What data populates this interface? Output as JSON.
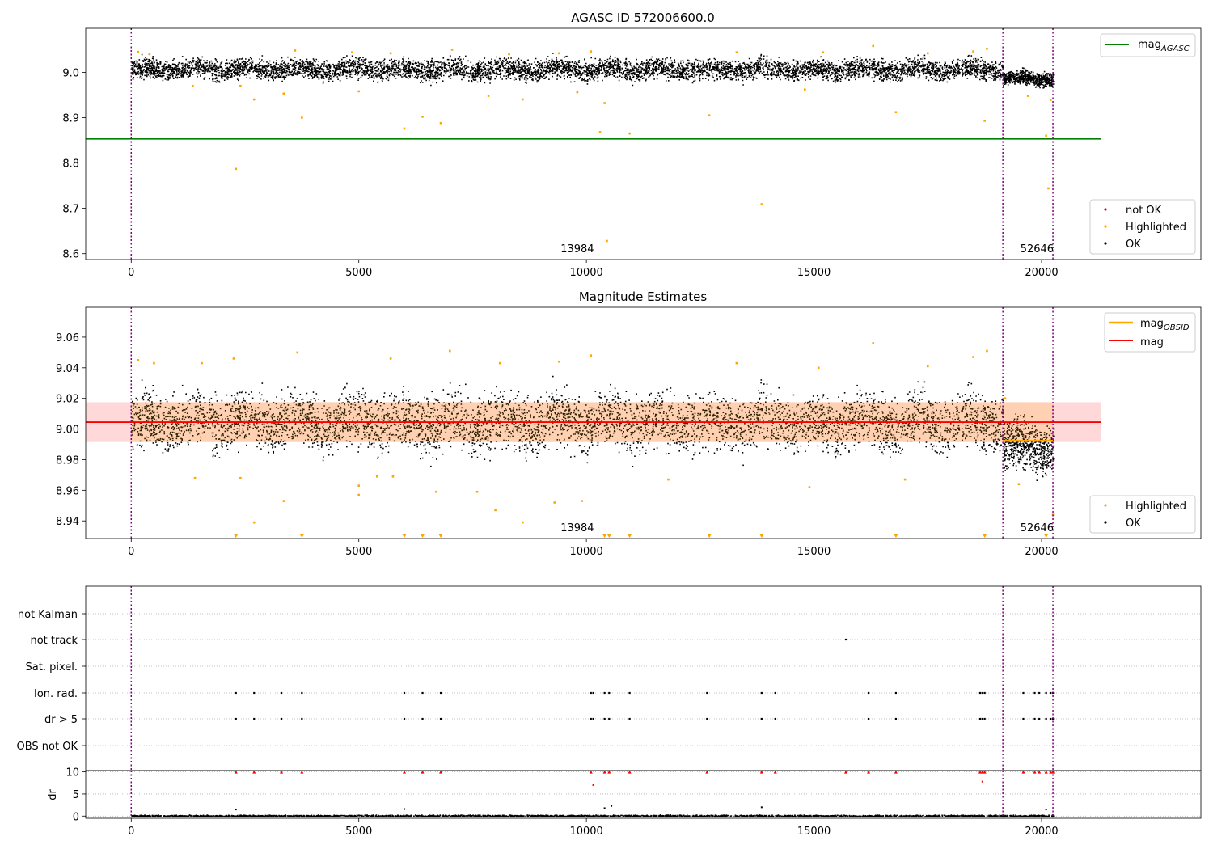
{
  "figure": {
    "x_ticks": [
      "0",
      "5000",
      "10000",
      "15000",
      "20000"
    ],
    "markers": {
      "obsid_lines_x": [
        0,
        19150,
        20250
      ],
      "obsid_labels": [
        {
          "text": "13984",
          "x": 9800
        },
        {
          "text": "52646",
          "x": 19900
        }
      ]
    },
    "colors": {
      "ok": "#000000",
      "highlighted": "#ffa500",
      "not_ok": "#ff0000",
      "mag_agasc": "#008000",
      "mag": "#ff0000",
      "mag_obsid": "#ffa500",
      "band": "#ffc0c0",
      "obsid_line": "#800080"
    }
  },
  "chart_data": [
    {
      "type": "scatter",
      "title": "AGASC ID 572006600.0",
      "xlim": [
        -1000,
        23500
      ],
      "ylim": [
        8.587,
        9.097
      ],
      "yticks": [
        "8.6",
        "8.7",
        "8.8",
        "8.9",
        "9.0"
      ],
      "ytick_values": [
        8.6,
        8.7,
        8.8,
        8.9,
        9.0
      ],
      "series": [
        {
          "name": "not OK",
          "color": "#ff0000",
          "points": []
        },
        {
          "name": "Highlighted",
          "color": "#ffa500",
          "points": [
            [
              150,
              9.045
            ],
            [
              400,
              9.04
            ],
            [
              1350,
              8.97
            ],
            [
              2300,
              8.787
            ],
            [
              2400,
              8.97
            ],
            [
              2700,
              8.94
            ],
            [
              3350,
              8.953
            ],
            [
              3600,
              9.048
            ],
            [
              3750,
              8.9
            ],
            [
              4850,
              9.044
            ],
            [
              5000,
              8.958
            ],
            [
              5700,
              9.042
            ],
            [
              6000,
              8.876
            ],
            [
              6400,
              8.902
            ],
            [
              6800,
              8.888
            ],
            [
              7050,
              9.05
            ],
            [
              7850,
              8.948
            ],
            [
              8300,
              9.04
            ],
            [
              8600,
              8.94
            ],
            [
              9400,
              9.042
            ],
            [
              9800,
              8.956
            ],
            [
              10100,
              9.046
            ],
            [
              10300,
              8.868
            ],
            [
              10400,
              8.932
            ],
            [
              10450,
              8.628
            ],
            [
              10950,
              8.865
            ],
            [
              12700,
              8.905
            ],
            [
              13300,
              9.044
            ],
            [
              13850,
              8.709
            ],
            [
              14800,
              8.962
            ],
            [
              15200,
              9.044
            ],
            [
              16300,
              9.058
            ],
            [
              16800,
              8.912
            ],
            [
              17500,
              9.042
            ],
            [
              18500,
              9.046
            ],
            [
              18750,
              8.893
            ],
            [
              18800,
              9.052
            ],
            [
              19700,
              8.948
            ],
            [
              20100,
              8.86
            ],
            [
              20150,
              8.744
            ],
            [
              20200,
              8.939
            ]
          ]
        },
        {
          "name": "OK",
          "color": "#000000",
          "bands": [
            {
              "x0": 0,
              "x1": 19150,
              "y0": 8.975,
              "y1": 9.04
            },
            {
              "x0": 19150,
              "x1": 20250,
              "y0": 8.965,
              "y1": 9.01
            }
          ]
        }
      ],
      "lines": [
        {
          "name": "mag$_{AGASC}$",
          "legend_text": "mag",
          "legend_sub": "AGASC",
          "y": 8.853,
          "x_range": [
            -1000,
            21300
          ],
          "color": "#008000"
        }
      ],
      "legends": [
        {
          "position": "upper-right",
          "entries": [
            "mag_AGASC"
          ]
        },
        {
          "position": "lower-right",
          "entries": [
            "not OK",
            "Highlighted",
            "OK"
          ]
        }
      ]
    },
    {
      "type": "scatter",
      "title": "Magnitude Estimates",
      "xlim": [
        -1000,
        23500
      ],
      "ylim": [
        8.9285,
        9.0795
      ],
      "yticks": [
        "8.94",
        "8.96",
        "8.98",
        "9.00",
        "9.02",
        "9.04",
        "9.06"
      ],
      "ytick_values": [
        8.94,
        8.96,
        8.98,
        9.0,
        9.02,
        9.04,
        9.06
      ],
      "series": [
        {
          "name": "Highlighted",
          "color": "#ffa500",
          "points": [
            [
              150,
              9.045
            ],
            [
              500,
              9.043
            ],
            [
              1400,
              8.968
            ],
            [
              1550,
              9.043
            ],
            [
              2250,
              9.046
            ],
            [
              2400,
              8.968
            ],
            [
              2700,
              8.939
            ],
            [
              3350,
              8.953
            ],
            [
              3650,
              9.05
            ],
            [
              5000,
              8.963
            ],
            [
              5000,
              8.957
            ],
            [
              5400,
              8.969
            ],
            [
              5700,
              9.046
            ],
            [
              5750,
              8.969
            ],
            [
              6700,
              8.959
            ],
            [
              7000,
              9.051
            ],
            [
              7600,
              8.959
            ],
            [
              8000,
              8.947
            ],
            [
              8100,
              9.043
            ],
            [
              8600,
              8.939
            ],
            [
              9300,
              8.952
            ],
            [
              9400,
              9.044
            ],
            [
              9900,
              8.953
            ],
            [
              10100,
              9.048
            ],
            [
              11800,
              8.967
            ],
            [
              13300,
              9.043
            ],
            [
              14900,
              8.962
            ],
            [
              15100,
              9.04
            ],
            [
              16300,
              9.056
            ],
            [
              17000,
              8.967
            ],
            [
              17500,
              9.041
            ],
            [
              18500,
              9.047
            ],
            [
              18800,
              9.051
            ],
            [
              19200,
              9.02
            ],
            [
              19500,
              8.964
            ],
            [
              20250,
              8.944
            ]
          ],
          "limit_points_x": [
            2300,
            3750,
            6000,
            6400,
            6800,
            10400,
            10500,
            10950,
            12700,
            13850,
            16800,
            18750,
            20100
          ]
        },
        {
          "name": "OK",
          "color": "#000000",
          "bands": [
            {
              "x0": 0,
              "x1": 19150,
              "y0": 8.978,
              "y1": 9.032
            },
            {
              "x0": 19150,
              "x1": 20250,
              "y0": 8.966,
              "y1": 9.012
            }
          ]
        }
      ],
      "lines": [
        {
          "name": "mag$_{OBSID}$",
          "legend_text": "mag",
          "legend_sub": "OBSID",
          "color": "#ffa500",
          "segments": [
            [
              -1000,
              19150,
              9.0045
            ],
            [
              19150,
              20250,
              8.9923
            ]
          ]
        },
        {
          "name": "mag",
          "legend_text": "mag",
          "color": "#ff0000",
          "y": 9.0045,
          "x_range": [
            -1000,
            21300
          ],
          "band": [
            8.9915,
            9.0175
          ]
        }
      ],
      "legends": [
        {
          "position": "upper-right",
          "entries": [
            "mag_OBSID",
            "mag"
          ]
        },
        {
          "position": "lower-right",
          "entries": [
            "Highlighted",
            "OK"
          ]
        }
      ]
    },
    {
      "type": "scatter",
      "title": "",
      "xlim": [
        -1000,
        23500
      ],
      "categories": [
        "OBS not OK",
        "dr > 5",
        "Ion. rad.",
        "Sat. pixel.",
        "not track",
        "not Kalman"
      ],
      "flag_points": {
        "dr > 5": [
          2300,
          2700,
          3300,
          3750,
          6000,
          6400,
          6800,
          10100,
          10150,
          10400,
          10500,
          10950,
          12650,
          13850,
          14150,
          16200,
          16800,
          18650,
          18700,
          18750,
          19600,
          19850,
          19950,
          20100,
          20200,
          20250
        ],
        "Ion. rad.": [
          2300,
          2700,
          3300,
          3750,
          6000,
          6400,
          6800,
          10100,
          10150,
          10400,
          10500,
          10950,
          12650,
          13850,
          14150,
          16200,
          16800,
          18650,
          18700,
          18750,
          19600,
          19850,
          19950,
          20100,
          20200,
          20250
        ],
        "not track": [
          15700
        ]
      }
    },
    {
      "type": "scatter",
      "title": "",
      "ylabel": "dr",
      "xlim": [
        -1000,
        23500
      ],
      "ylim": [
        -0.5,
        10.3
      ],
      "yticks": [
        "0",
        "5",
        "10"
      ],
      "ytick_values": [
        0,
        5,
        10
      ],
      "capped_red_x": [
        2300,
        2700,
        3300,
        3750,
        6000,
        6400,
        6800,
        10100,
        10400,
        10500,
        10950,
        12650,
        13850,
        14150,
        15700,
        16200,
        16800,
        18650,
        18700,
        18750,
        19600,
        19850,
        19950,
        20100,
        20200,
        20250
      ],
      "red_points": [
        [
          10150,
          7.0
        ],
        [
          18700,
          7.8
        ]
      ],
      "outliers": [
        [
          2300,
          1.5
        ],
        [
          6000,
          1.6
        ],
        [
          10400,
          1.8
        ],
        [
          10550,
          2.3
        ],
        [
          13850,
          2.0
        ],
        [
          20100,
          1.5
        ]
      ]
    }
  ]
}
